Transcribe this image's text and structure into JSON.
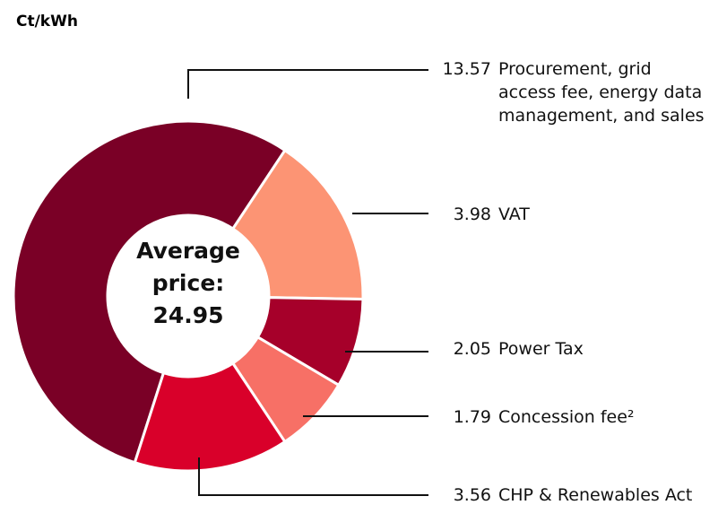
{
  "chart_data": {
    "type": "donut",
    "unit_label": "Ct/kWh",
    "center_label": "Average price:",
    "total": 24.95,
    "categories": [
      "Procurement, grid access fee, energy data management, and sales",
      "VAT",
      "Power Tax",
      "Concession fee²",
      "CHP & Renewables Act"
    ],
    "values": [
      13.57,
      3.98,
      2.05,
      1.79,
      3.56
    ],
    "colors": [
      "#7a0026",
      "#fc9474",
      "#a6002a",
      "#f77066",
      "#d9002a"
    ]
  }
}
